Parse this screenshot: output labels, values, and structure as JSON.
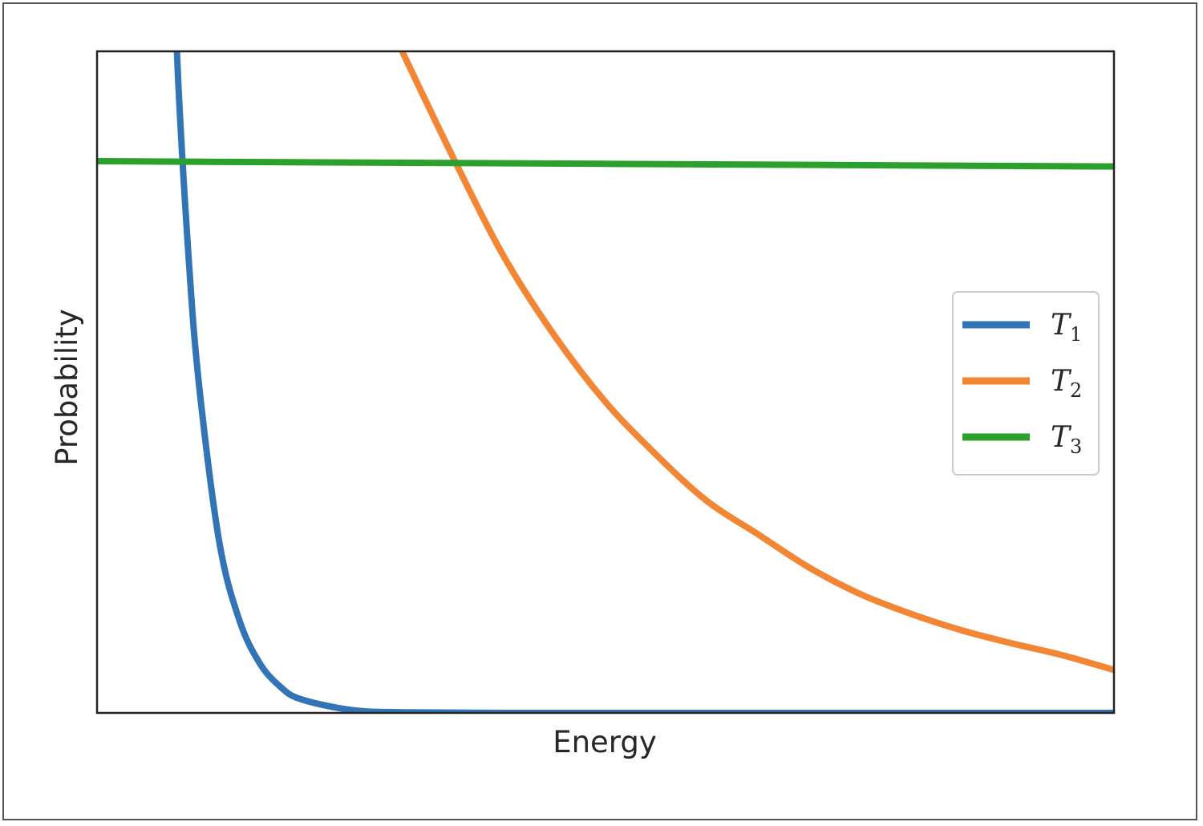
{
  "chart_data": {
    "type": "line",
    "title": "",
    "xlabel": "Energy",
    "ylabel": "Probability",
    "x_ticks": [],
    "y_ticks": [],
    "grid": false,
    "legend_position": "right",
    "xlim": [
      0,
      10
    ],
    "ylim": [
      0,
      1
    ],
    "series": [
      {
        "name": "T1",
        "label_main": "T",
        "label_sub": "1",
        "color": "#3274b5",
        "x": [
          0.7,
          0.8,
          0.9,
          1.0,
          1.2,
          1.4,
          1.6,
          1.8,
          2.0,
          2.5,
          3.0,
          4.0,
          6.0,
          8.0,
          10.0
        ],
        "y": [
          1.32,
          0.95,
          0.69,
          0.5,
          0.26,
          0.14,
          0.075,
          0.04,
          0.021,
          0.0044,
          0.001,
          0.0,
          0.0,
          0.0,
          0.0
        ]
      },
      {
        "name": "T2",
        "label_main": "T",
        "label_sub": "2",
        "color": "#f28634",
        "x": [
          3.0,
          3.5,
          4.0,
          4.5,
          5.0,
          5.5,
          6.0,
          6.5,
          7.0,
          7.5,
          8.0,
          8.5,
          9.0,
          9.5,
          10.0
        ],
        "y": [
          1.0,
          0.84,
          0.69,
          0.57,
          0.47,
          0.39,
          0.32,
          0.27,
          0.22,
          0.18,
          0.15,
          0.125,
          0.105,
          0.087,
          0.065
        ]
      },
      {
        "name": "T3",
        "label_main": "T",
        "label_sub": "3",
        "color": "#2ca02c",
        "x": [
          0.0,
          10.0
        ],
        "y": [
          0.834,
          0.826
        ]
      }
    ]
  }
}
